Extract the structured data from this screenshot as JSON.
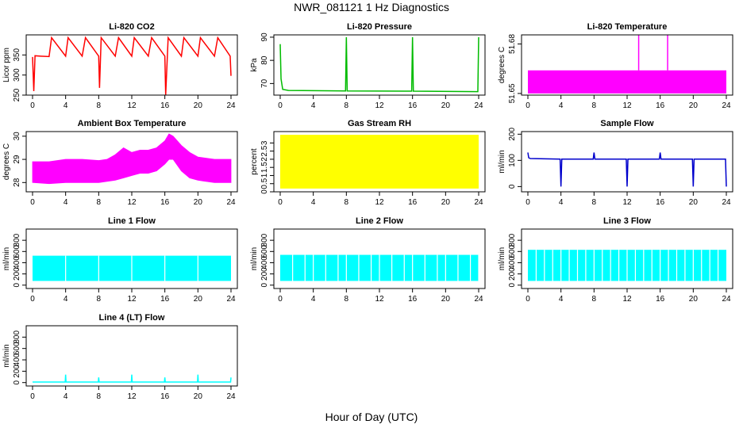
{
  "figure": {
    "title": "NWR_081121  1 Hz Diagnostics",
    "xlabel": "Hour of Day (UTC)"
  },
  "chart_data": [
    {
      "type": "line",
      "title": "Li-820 CO2",
      "ylabel": "Licor ppm",
      "color": "#ff0000",
      "xlim": [
        0,
        24
      ],
      "xticks": [
        0,
        4,
        8,
        12,
        16,
        20,
        24
      ],
      "ylim": [
        250,
        400
      ],
      "yticks": [
        250,
        300,
        350
      ],
      "x": [
        0,
        0.15,
        0.3,
        1,
        2,
        2.3,
        4,
        4.3,
        6,
        6.4,
        8,
        8.1,
        8.3,
        10,
        10.4,
        12,
        12.3,
        14,
        14.4,
        16,
        16.1,
        16.4,
        18,
        18.3,
        20,
        20.3,
        22,
        22.4,
        23.9,
        24
      ],
      "y": [
        345,
        260,
        348,
        347,
        346,
        393,
        347,
        393,
        347,
        393,
        347,
        268,
        393,
        347,
        393,
        347,
        393,
        347,
        393,
        347,
        250,
        393,
        347,
        393,
        347,
        393,
        347,
        393,
        347,
        298
      ]
    },
    {
      "type": "line",
      "title": "Li-820 Pressure",
      "ylabel": "kPa",
      "color": "#00bb00",
      "xlim": [
        0,
        24
      ],
      "xticks": [
        0,
        4,
        8,
        12,
        16,
        20,
        24
      ],
      "ylim": [
        65,
        91
      ],
      "yticks": [
        70,
        80,
        90
      ],
      "x": [
        0,
        0.1,
        0.3,
        1,
        7.9,
        8,
        8.1,
        15.9,
        16,
        16.1,
        23.9,
        24
      ],
      "y": [
        87,
        72,
        67.5,
        67,
        66.8,
        90,
        66.8,
        66.7,
        90,
        66.7,
        66.5,
        90
      ]
    },
    {
      "type": "line",
      "title": "Li-820 Temperature",
      "ylabel": "degrees C",
      "color": "#ff00ff",
      "xlim": [
        0,
        24
      ],
      "xticks": [
        0,
        4,
        8,
        12,
        16,
        20,
        24
      ],
      "ylim": [
        51.649,
        51.6855
      ],
      "yticks": [
        51.65,
        51.68
      ],
      "band_low": 51.65,
      "band_high": 51.664,
      "spikes_x": [
        13.4,
        16.9
      ],
      "spikes_y": [
        51.6855,
        51.6855
      ]
    },
    {
      "type": "line",
      "title": "Ambient Box Temperature",
      "ylabel": "degrees C",
      "color": "#ff00ff",
      "xlim": [
        0,
        24
      ],
      "xticks": [
        0,
        4,
        8,
        12,
        16,
        20,
        24
      ],
      "ylim": [
        27.6,
        30.2
      ],
      "yticks": [
        28.0,
        29.0,
        30.0
      ],
      "x": [
        0,
        2,
        4,
        6,
        8,
        9,
        10,
        11,
        12,
        13,
        14,
        15,
        16,
        16.5,
        17,
        18,
        19,
        20,
        22,
        24
      ],
      "low": [
        28.0,
        27.95,
        28.0,
        28.0,
        28.0,
        28.05,
        28.1,
        28.2,
        28.3,
        28.4,
        28.4,
        28.5,
        28.8,
        29.0,
        29.0,
        28.5,
        28.2,
        28.1,
        28.0,
        28.0
      ],
      "high": [
        28.9,
        28.9,
        29.0,
        29.0,
        28.95,
        29.0,
        29.2,
        29.5,
        29.3,
        29.4,
        29.4,
        29.5,
        29.8,
        30.1,
        30.0,
        29.6,
        29.3,
        29.1,
        29.0,
        29.0
      ]
    },
    {
      "type": "area",
      "title": "Gas Stream RH",
      "ylabel": "percent",
      "color": "#ffff00",
      "xlim": [
        0,
        24
      ],
      "xticks": [
        0,
        4,
        8,
        12,
        16,
        20,
        24
      ],
      "ylim": [
        0,
        3.7
      ],
      "yticks": [
        0.0,
        0.5,
        1.0,
        1.5,
        2.0,
        2.5,
        3.0
      ],
      "band_low": 0.2,
      "band_high": 3.5
    },
    {
      "type": "line",
      "title": "Sample Flow",
      "ylabel": "ml/min",
      "color": "#0000cc",
      "xlim": [
        0,
        24
      ],
      "xticks": [
        0,
        4,
        8,
        12,
        16,
        20,
        24
      ],
      "ylim": [
        -20,
        210
      ],
      "yticks": [
        0,
        100,
        200
      ],
      "x": [
        0,
        0.1,
        0.3,
        3.9,
        4,
        4.1,
        7.9,
        8,
        8.1,
        11.9,
        12,
        12.1,
        15.9,
        16,
        16.1,
        19.9,
        20,
        20.1,
        23.9,
        24
      ],
      "y": [
        130,
        110,
        107,
        105,
        0,
        105,
        105,
        130,
        105,
        105,
        0,
        105,
        105,
        130,
        105,
        105,
        0,
        105,
        105,
        0
      ]
    },
    {
      "type": "area",
      "title": "Line 1 Flow",
      "ylabel": "ml/min",
      "color": "#00ffff",
      "xlim": [
        0,
        24
      ],
      "xticks": [
        0,
        4,
        8,
        12,
        16,
        20,
        24
      ],
      "ylim": [
        -60,
        1000
      ],
      "yticks": [
        0,
        200,
        400,
        600,
        800
      ],
      "band_low": 75,
      "band_high": 525,
      "gaps_x": [
        4,
        8,
        12,
        16,
        20
      ]
    },
    {
      "type": "area",
      "title": "Line 2 Flow",
      "ylabel": "ml/min",
      "color": "#00ffff",
      "xlim": [
        0,
        24
      ],
      "xticks": [
        0,
        4,
        8,
        12,
        16,
        20,
        24
      ],
      "ylim": [
        -60,
        1000
      ],
      "yticks": [
        0,
        200,
        400,
        600,
        800
      ],
      "band_low": 75,
      "band_high": 540,
      "gaps_x": [
        1.5,
        3,
        4,
        5.5,
        7,
        8,
        9.5,
        11,
        12,
        13.5,
        15,
        16,
        17.5,
        19,
        20,
        21.5,
        23,
        24
      ]
    },
    {
      "type": "area",
      "title": "Line 3 Flow",
      "ylabel": "ml/min",
      "color": "#00ffff",
      "xlim": [
        0,
        24
      ],
      "xticks": [
        0,
        4,
        8,
        12,
        16,
        20,
        24
      ],
      "ylim": [
        -60,
        1000
      ],
      "yticks": [
        0,
        200,
        400,
        600,
        800
      ],
      "band_low": 75,
      "band_high": 630,
      "gaps_x": [
        1,
        2,
        3,
        4,
        5,
        6,
        7,
        8,
        9,
        10,
        11,
        12,
        13,
        14,
        15,
        16,
        17,
        18,
        19,
        20,
        21,
        22,
        23
      ]
    },
    {
      "type": "line",
      "title": "Line 4 (LT) Flow",
      "ylabel": "ml/min",
      "color": "#00ffff",
      "xlim": [
        0,
        24
      ],
      "xticks": [
        0,
        4,
        8,
        12,
        16,
        20,
        24
      ],
      "ylim": [
        -60,
        1000
      ],
      "yticks": [
        0,
        200,
        400,
        600,
        800
      ],
      "x": [
        0,
        3.95,
        4,
        4.05,
        7.95,
        8,
        8.05,
        11.95,
        12,
        12.05,
        15.95,
        16,
        16.05,
        19.95,
        20,
        20.05,
        23.95,
        24
      ],
      "y": [
        10,
        10,
        140,
        10,
        10,
        90,
        10,
        10,
        140,
        10,
        10,
        90,
        10,
        10,
        140,
        10,
        10,
        90
      ]
    }
  ]
}
